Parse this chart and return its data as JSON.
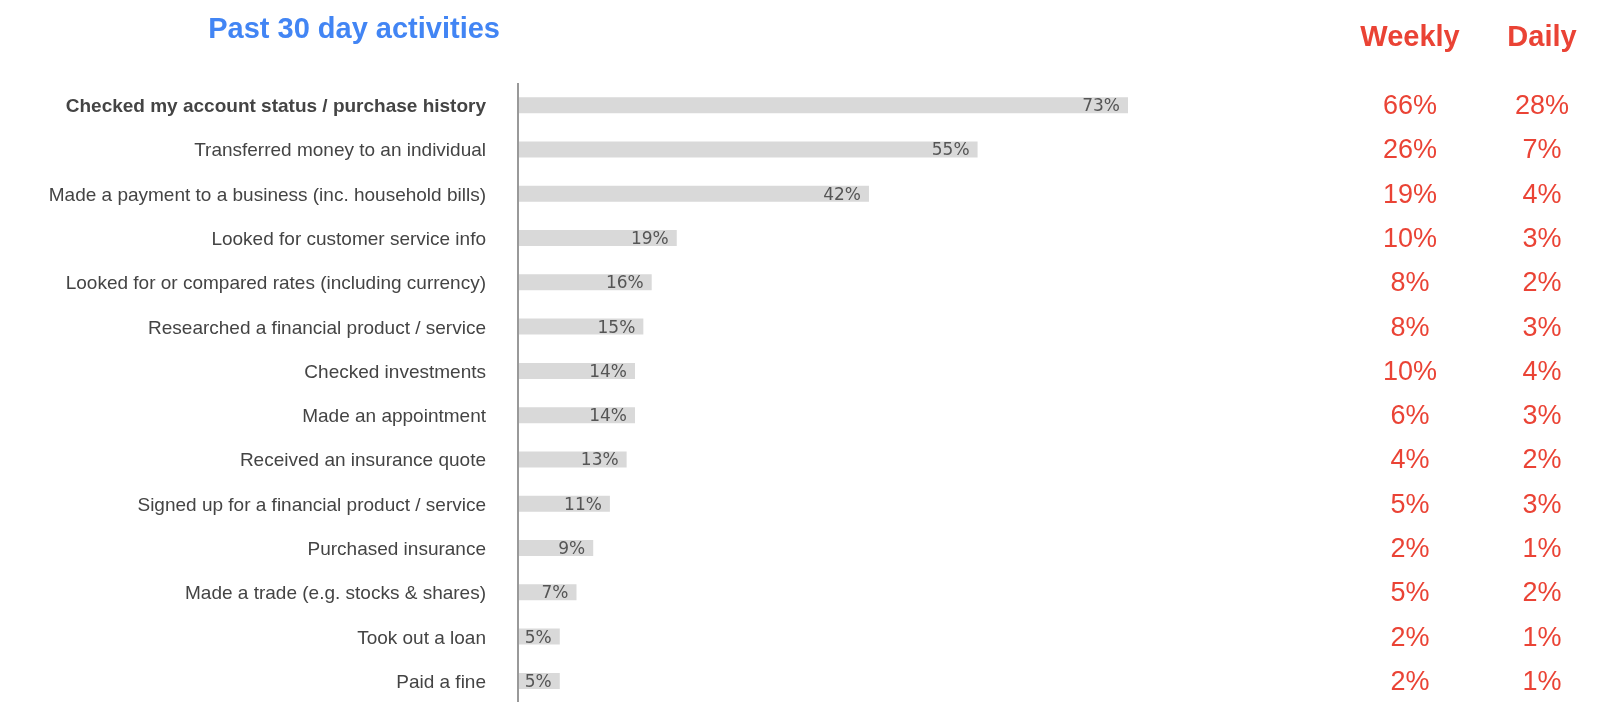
{
  "chart_data": [
    {
      "type": "bar",
      "orientation": "horizontal",
      "title": "Past 30 day activities",
      "categories": [
        "Checked my account status / purchase history",
        "Transferred money to an individual",
        "Made a payment to a business (inc. household bills)",
        "Looked for customer service info",
        "Looked for or compared rates (including currency)",
        "Researched a financial product / service",
        "Checked investments",
        "Made an appointment",
        "Received an insurance quote",
        "Signed up for a financial product / service",
        "Purchased insurance",
        "Made a trade (e.g. stocks & shares)",
        "Took out a loan",
        "Paid a fine"
      ],
      "series": [
        {
          "color": "#d9d9d9",
          "values": [
            73,
            55,
            42,
            19,
            16,
            15,
            14,
            14,
            13,
            11,
            9,
            7,
            5,
            5
          ],
          "value_labels": [
            "73%",
            "55%",
            "42%",
            "19%",
            "16%",
            "15%",
            "14%",
            "14%",
            "13%",
            "11%",
            "9%",
            "7%",
            "5%",
            "5%"
          ]
        }
      ]
    },
    {
      "type": "heatmap",
      "color": "#ea4335",
      "categories": [
        "Weekly",
        "Daily"
      ],
      "y_categories": [
        null,
        null,
        null,
        null,
        null,
        null,
        null,
        null,
        null,
        null,
        null,
        null,
        null,
        null
      ],
      "cells": [
        [
          66,
          28
        ],
        [
          26,
          7
        ],
        [
          19,
          4
        ],
        [
          10,
          3
        ],
        [
          8,
          2
        ],
        [
          8,
          3
        ],
        [
          10,
          4
        ],
        [
          6,
          3
        ],
        [
          4,
          2
        ],
        [
          5,
          3
        ],
        [
          2,
          1
        ],
        [
          5,
          2
        ],
        [
          2,
          1
        ],
        [
          2,
          1
        ]
      ],
      "cell_labels": [
        [
          "66%",
          "28%"
        ],
        [
          "26%",
          "7%"
        ],
        [
          "19%",
          "4%"
        ],
        [
          "10%",
          "3%"
        ],
        [
          "8%",
          "2%"
        ],
        [
          "8%",
          "3%"
        ],
        [
          "10%",
          "4%"
        ],
        [
          "6%",
          "3%"
        ],
        [
          "4%",
          "2%"
        ],
        [
          "5%",
          "3%"
        ],
        [
          "2%",
          "1%"
        ],
        [
          "5%",
          "2%"
        ],
        [
          "2%",
          "1%"
        ],
        [
          "2%",
          "1%"
        ]
      ]
    }
  ]
}
